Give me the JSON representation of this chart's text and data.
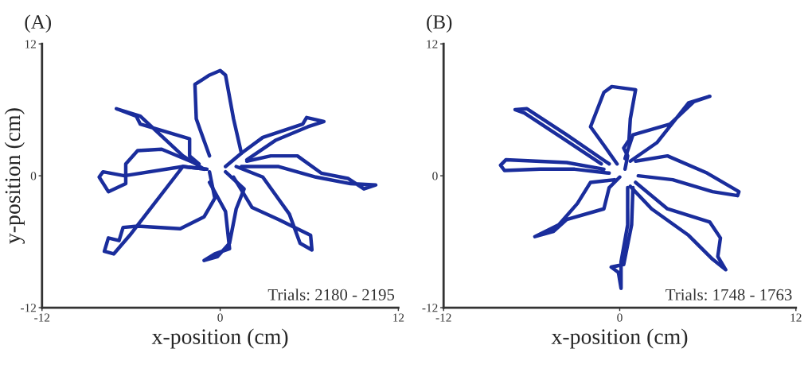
{
  "chart_data": [
    {
      "type": "line",
      "title": "(A)",
      "xlabel": "x-position (cm)",
      "ylabel": "y-position (cm)",
      "xlim": [
        -12,
        12
      ],
      "ylim": [
        -12,
        12
      ],
      "xticks": [
        -12,
        0,
        12
      ],
      "yticks": [
        -12,
        0,
        12
      ],
      "grid": false,
      "legend": false,
      "marker": "none",
      "line_style": "solid",
      "annotations": [
        "Trials: 2180 - 2195"
      ],
      "series": [
        {
          "color": "#1a2d9c",
          "x": [
            -0.72,
            -1.61,
            -1.7,
            -0.72,
            0,
            0.36,
            0.9,
            1.43,
            0.36
          ],
          "values": [
            1.81,
            5.18,
            8.31,
            9.16,
            9.57,
            9.16,
            5.18,
            2.05,
            0.84
          ]
        },
        {
          "color": "#1a2d9c",
          "x": [
            -1.43,
            -2.06,
            -2.06,
            -5.38,
            -5.65,
            -6.99,
            -5.38,
            -2.51,
            -1.08
          ],
          "values": [
            1.08,
            1.81,
            3.37,
            4.7,
            5.42,
            6.1,
            5.42,
            1.81,
            0.6
          ]
        },
        {
          "color": "#1a2d9c",
          "x": [
            -1.79,
            -3.94,
            -5.56,
            -6.36,
            -6.36,
            -7.53,
            -8.15,
            -7.89,
            -6.45,
            -2.51,
            -0.9
          ],
          "values": [
            1.2,
            2.41,
            2.29,
            1.08,
            -0.72,
            -1.45,
            -0.12,
            0.36,
            0,
            0.84,
            0.6
          ]
        },
        {
          "color": "#1a2d9c",
          "x": [
            -0.72,
            -0.36,
            -1.08,
            -2.69,
            -5.56,
            -6.54,
            -6.81,
            -7.53,
            -7.8,
            -7.17,
            -6.09,
            -2.51,
            -0.9
          ],
          "values": [
            0.36,
            -2.05,
            -3.73,
            -4.82,
            -4.58,
            -4.7,
            -5.9,
            -5.66,
            -6.87,
            -7.11,
            -5.42,
            0.84,
            0.6
          ]
        },
        {
          "color": "#1a2d9c",
          "x": [
            -0.72,
            0.36,
            0.63,
            -0.36,
            -1.08,
            -0.18,
            0.63,
            1.08,
            1.61,
            0.36
          ],
          "values": [
            -0.6,
            -3.25,
            -6.63,
            -7.11,
            -7.71,
            -7.35,
            -6.14,
            -3.01,
            -1.2,
            0.36
          ]
        },
        {
          "color": "#1a2d9c",
          "x": [
            0.9,
            2.15,
            3.94,
            6.09,
            6.18,
            5.38,
            4.66,
            2.87,
            1.08
          ],
          "values": [
            -0.12,
            -2.89,
            -3.98,
            -5.42,
            -6.75,
            -6.14,
            -3.49,
            -0.12,
            0.84
          ]
        },
        {
          "color": "#1a2d9c",
          "x": [
            1.79,
            3.41,
            5.2,
            6.81,
            8.6,
            9.68,
            10.48,
            8.78,
            6.45,
            3.94,
            1.43
          ],
          "values": [
            1.33,
            1.81,
            1.81,
            0.24,
            -0.24,
            -1.2,
            -0.84,
            -0.72,
            -0.12,
            0.84,
            0.84
          ]
        },
        {
          "color": "#1a2d9c",
          "x": [
            1.43,
            2.87,
            5.56,
            5.82,
            6.99,
            5.91,
            3.76,
            1.79
          ],
          "values": [
            2.05,
            3.49,
            4.7,
            5.3,
            4.94,
            4.46,
            3.25,
            1.45
          ]
        }
      ]
    },
    {
      "type": "line",
      "title": "(B)",
      "xlabel": "x-position (cm)",
      "xlim": [
        -12,
        12
      ],
      "ylim": [
        -12,
        12
      ],
      "xticks": [
        -12,
        0,
        12
      ],
      "yticks": [
        -12,
        0,
        12
      ],
      "grid": false,
      "legend": false,
      "marker": "none",
      "line_style": "solid",
      "annotations": [
        "Trials: 1748 - 1763"
      ],
      "series": [
        {
          "color": "#1a2d9c",
          "x": [
            -0.18,
            -1.08,
            -1.99,
            -1.08,
            -0.54,
            1.08,
            0.72,
            0.63,
            0.27,
            0.54,
            0.36
          ],
          "values": [
            1.08,
            2.77,
            4.46,
            7.59,
            8.12,
            7.83,
            5.18,
            3.25,
            2.53,
            1.81,
            0.6
          ]
        },
        {
          "color": "#1a2d9c",
          "x": [
            0.72,
            2.53,
            4.69,
            6.14,
            5.05,
            3.43,
            0.9,
            0.36
          ],
          "values": [
            1.33,
            3.01,
            6.63,
            7.23,
            6.75,
            4.7,
            3.73,
            1.57
          ]
        },
        {
          "color": "#1a2d9c",
          "x": [
            1.08,
            3.25,
            5.96,
            8.12,
            8.03,
            6.32,
            3.61,
            1.26
          ],
          "values": [
            1.33,
            1.81,
            0.24,
            -1.45,
            -1.81,
            -1.45,
            -0.36,
            0
          ]
        },
        {
          "color": "#1a2d9c",
          "x": [
            1.08,
            3.25,
            6.14,
            6.86,
            6.68,
            7.22,
            6.32,
            4.69,
            2.17,
            0.72
          ],
          "values": [
            -0.6,
            -3.01,
            -4.22,
            -5.66,
            -7.35,
            -8.55,
            -7.59,
            -5.42,
            -3.01,
            -0.96
          ]
        },
        {
          "color": "#1a2d9c",
          "x": [
            0.54,
            0.54,
            0.09,
            0.09,
            -0.09,
            -0.58,
            0.27,
            0.81,
            0.9
          ],
          "values": [
            -1.08,
            -4.46,
            -7.83,
            -10.24,
            -8.8,
            -8.31,
            -8.07,
            -4.46,
            -1.08
          ]
        },
        {
          "color": "#1a2d9c",
          "x": [
            -0.36,
            -1.99,
            -2.89,
            -4.15,
            -5.78,
            -4.51,
            -3.61,
            -1.08,
            -0.72,
            0
          ],
          "values": [
            -0.36,
            -0.6,
            -2.53,
            -4.46,
            -5.54,
            -5.06,
            -3.98,
            -3.01,
            -1.08,
            -0.12
          ]
        },
        {
          "color": "#1a2d9c",
          "x": [
            -1.08,
            -3.61,
            -7.76,
            -8.12,
            -7.85,
            -5.42,
            -3.07,
            -0.72
          ],
          "values": [
            0.6,
            1.2,
            1.45,
            0.96,
            0.48,
            0.6,
            0.6,
            0.24
          ]
        },
        {
          "color": "#1a2d9c",
          "x": [
            -0.72,
            -3.61,
            -6.32,
            -7.13,
            -6.5,
            -3.97,
            -1.26
          ],
          "values": [
            1.08,
            3.73,
            6.1,
            6.02,
            5.71,
            3.49,
            1.08
          ]
        }
      ]
    }
  ]
}
